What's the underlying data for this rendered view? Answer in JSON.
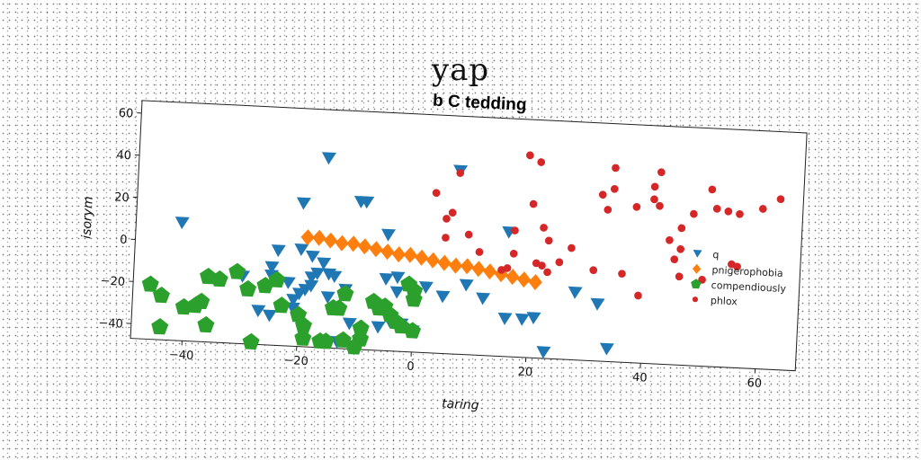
{
  "page": {
    "heading": "yap"
  },
  "chart_data": {
    "type": "scatter",
    "title": "b C tedding",
    "xlabel": "taring",
    "ylabel": "isorym",
    "xlim": [
      -49,
      67
    ],
    "ylim": [
      -47,
      66
    ],
    "xticks": [
      -40,
      -20,
      0,
      20,
      40,
      60
    ],
    "yticks": [
      -40,
      -20,
      0,
      20,
      40,
      60
    ],
    "xtick_labels": [
      "−40",
      "−20",
      "0",
      "20",
      "40",
      "60"
    ],
    "ytick_labels": [
      "−40",
      "−20",
      "0",
      "20",
      "40",
      "60"
    ],
    "grid": false,
    "legend_position": "center-right",
    "series": [
      {
        "name": "q",
        "marker": "triangle-down",
        "color": "#1f77b4",
        "points": [
          [
            -41,
            9
          ],
          [
            -16,
            43
          ],
          [
            -20,
            21
          ],
          [
            -10,
            23
          ],
          [
            -9,
            23
          ],
          [
            -5,
            8
          ],
          [
            7,
            40
          ],
          [
            16,
            12
          ],
          [
            -24,
            -2
          ],
          [
            -20,
            -1
          ],
          [
            -18,
            -4
          ],
          [
            -16,
            -7
          ],
          [
            -17,
            -12
          ],
          [
            -15,
            -12
          ],
          [
            -18,
            -18
          ],
          [
            -25,
            -10
          ],
          [
            -25,
            -14
          ],
          [
            -27,
            -31
          ],
          [
            -25,
            -33
          ],
          [
            -22,
            -17
          ],
          [
            -20,
            -22
          ],
          [
            -19,
            -20
          ],
          [
            -21,
            -25
          ],
          [
            -15,
            -23
          ],
          [
            -12,
            -19
          ],
          [
            -11,
            -35
          ],
          [
            -13,
            -44
          ],
          [
            -5,
            -13
          ],
          [
            -3,
            -12
          ],
          [
            -3,
            -19
          ],
          [
            -4,
            -33
          ],
          [
            -2,
            -34
          ],
          [
            -6,
            -36
          ],
          [
            0,
            -37
          ],
          [
            2,
            -16
          ],
          [
            5,
            -20
          ],
          [
            9,
            -14
          ],
          [
            12,
            -20
          ],
          [
            16,
            -29
          ],
          [
            19,
            -29
          ],
          [
            21,
            -28
          ],
          [
            23,
            -44
          ],
          [
            28,
            -15
          ],
          [
            32,
            -20
          ],
          [
            34,
            -41
          ],
          [
            -21,
            -29
          ],
          [
            -30,
            -15
          ],
          [
            -18,
            -14
          ],
          [
            -14,
            -13
          ]
        ]
      },
      {
        "name": "pnigerophobia",
        "marker": "diamond",
        "color": "#ff7f0e",
        "points": [
          [
            -19,
            5
          ],
          [
            -17,
            5
          ],
          [
            -15,
            4
          ],
          [
            -13,
            3
          ],
          [
            -11,
            3
          ],
          [
            -9,
            2
          ],
          [
            -7,
            1
          ],
          [
            -5,
            0
          ],
          [
            -3,
            -1
          ],
          [
            -1,
            -1
          ],
          [
            1,
            -2
          ],
          [
            3,
            -3
          ],
          [
            5,
            -4
          ],
          [
            7,
            -5
          ],
          [
            9,
            -5
          ],
          [
            11,
            -6
          ],
          [
            13,
            -7
          ],
          [
            15,
            -8
          ],
          [
            17,
            -9
          ],
          [
            19,
            -10
          ],
          [
            21,
            -11
          ]
        ]
      },
      {
        "name": "compendiously",
        "marker": "pentagon",
        "color": "#2ca02c",
        "points": [
          [
            -46,
            -21
          ],
          [
            -44,
            -26
          ],
          [
            -44,
            -41
          ],
          [
            -38,
            -30
          ],
          [
            -37,
            -28
          ],
          [
            -36,
            -16
          ],
          [
            -34,
            -17
          ],
          [
            -36,
            -39
          ],
          [
            -29,
            -21
          ],
          [
            -26,
            -19
          ],
          [
            -28,
            -46
          ],
          [
            -24,
            -16
          ],
          [
            -23,
            -28
          ],
          [
            -20,
            -32
          ],
          [
            -19,
            -37
          ],
          [
            -19,
            -43
          ],
          [
            -15,
            -44
          ],
          [
            -14,
            -28
          ],
          [
            -13,
            -28
          ],
          [
            -12,
            -21
          ],
          [
            -12,
            -43
          ],
          [
            -10,
            -46
          ],
          [
            -9,
            -37
          ],
          [
            -9,
            -42
          ],
          [
            -7,
            -24
          ],
          [
            -5,
            -26
          ],
          [
            -4,
            -30
          ],
          [
            -3,
            -33
          ],
          [
            -2,
            -35
          ],
          [
            0,
            -37
          ],
          [
            -1,
            -15
          ],
          [
            0,
            -18
          ],
          [
            0,
            -22
          ],
          [
            -40,
            -31
          ],
          [
            -31,
            -13
          ],
          [
            -16,
            -44
          ],
          [
            -6,
            -27
          ]
        ]
      },
      {
        "name": "phlox",
        "marker": "circle",
        "color": "#d62728",
        "points": [
          [
            3,
            29
          ],
          [
            7,
            39
          ],
          [
            6,
            20
          ],
          [
            5,
            17
          ],
          [
            5,
            8
          ],
          [
            9,
            10
          ],
          [
            11,
            2
          ],
          [
            15,
            -6
          ],
          [
            16,
            -5
          ],
          [
            17,
            13
          ],
          [
            17,
            2
          ],
          [
            19,
            49
          ],
          [
            20,
            26
          ],
          [
            21,
            46
          ],
          [
            21,
            -2
          ],
          [
            22,
            -3
          ],
          [
            22,
            15
          ],
          [
            23,
            9
          ],
          [
            23,
            -6
          ],
          [
            25,
            -1
          ],
          [
            27,
            6
          ],
          [
            31,
            -4
          ],
          [
            32,
            32
          ],
          [
            33,
            25
          ],
          [
            34,
            35
          ],
          [
            34,
            45
          ],
          [
            36,
            -5
          ],
          [
            38,
            27
          ],
          [
            39,
            -15
          ],
          [
            41,
            31
          ],
          [
            41,
            37
          ],
          [
            42,
            44
          ],
          [
            42,
            28
          ],
          [
            46,
            18
          ],
          [
            46,
            -5
          ],
          [
            46,
            8
          ],
          [
            48,
            25
          ],
          [
            50,
            -6
          ],
          [
            51,
            37
          ],
          [
            52,
            28
          ],
          [
            54,
            27
          ],
          [
            55,
            2
          ],
          [
            56,
            26
          ],
          [
            56,
            1
          ],
          [
            60,
            29
          ],
          [
            63,
            34
          ],
          [
            45,
            3
          ],
          [
            44,
            12
          ]
        ]
      }
    ]
  }
}
